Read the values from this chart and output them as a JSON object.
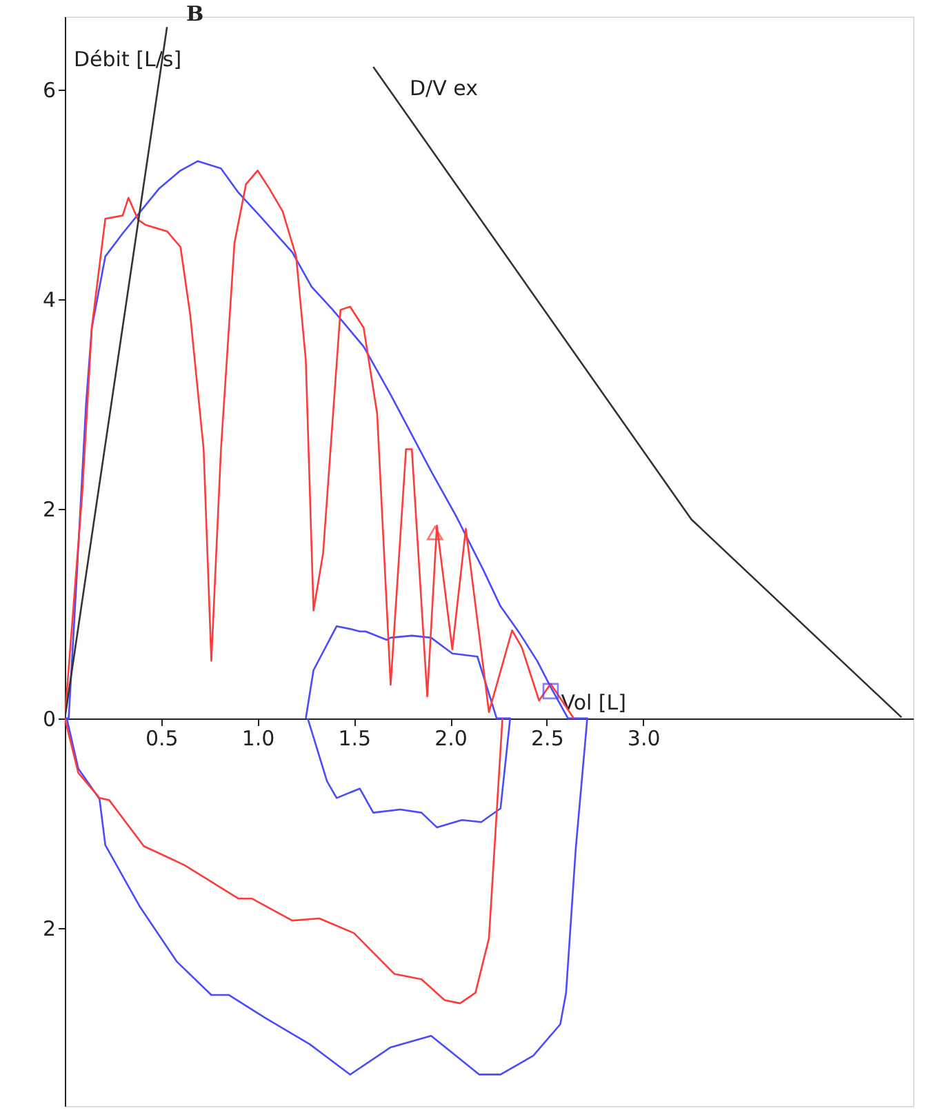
{
  "chart_data": {
    "type": "line",
    "xlabel": "Vol [L]",
    "ylabel": "Débit [L/s]",
    "annotations": [
      "B",
      "D/V ex"
    ],
    "xlim": [
      0,
      4.4
    ],
    "ylim": [
      -3.7,
      6.7
    ],
    "xticks": [
      0.5,
      {
        "value": 1,
        "label": "1.0"
      },
      1.5,
      {
        "value": 2,
        "label": "2.0"
      },
      2.5,
      {
        "value": 3,
        "label": "3.0"
      }
    ],
    "yticks": [
      {
        "value": -2,
        "label": "2"
      },
      0,
      2,
      4,
      6
    ],
    "grid": false,
    "marker": "none",
    "line_style": "solid",
    "series": [
      {
        "color": "#4a4aff",
        "x": [
          0,
          0.02,
          0.06,
          0.11,
          0.14,
          0.21,
          0.3,
          0.49,
          0.6,
          0.69,
          0.81,
          0.9,
          1.01,
          1.18,
          1.28,
          1.39,
          1.55,
          1.69,
          1.9,
          2.03,
          2.17,
          2.26,
          2.36,
          2.45,
          2.52,
          2.61,
          2.71,
          2.65,
          2.6,
          2.57,
          2.43,
          2.26,
          2.15,
          1.9,
          1.69,
          1.48,
          1.27,
          1.04,
          0.85,
          0.76,
          0.58,
          0.39,
          0.21,
          0.18,
          0.07,
          0.01
        ],
        "values": [
          0,
          0,
          1.29,
          3.0,
          3.73,
          4.41,
          4.63,
          5.06,
          5.23,
          5.32,
          5.25,
          5.02,
          4.8,
          4.45,
          4.12,
          3.9,
          3.55,
          3.09,
          2.36,
          1.93,
          1.42,
          1.07,
          0.81,
          0.55,
          0.3,
          0,
          0,
          -1.25,
          -2.62,
          -2.92,
          -3.22,
          -3.4,
          -3.4,
          -3.03,
          -3.14,
          -3.4,
          -3.11,
          -2.86,
          -2.64,
          -2.64,
          -2.32,
          -1.8,
          -1.21,
          -0.77,
          -0.48,
          0
        ]
      },
      {
        "color": "#4a4aff",
        "x": [
          1.25,
          1.29,
          1.41,
          1.49,
          1.53,
          1.56,
          1.67,
          1.69,
          1.8,
          1.9,
          2.01,
          2.14,
          2.24,
          2.31,
          2.26,
          2.16,
          2.06,
          1.93,
          1.85,
          1.74,
          1.6,
          1.53,
          1.41,
          1.36,
          1.26
        ],
        "values": [
          0,
          0.46,
          0.88,
          0.85,
          0.83,
          0.83,
          0.75,
          0.77,
          0.79,
          0.77,
          0.62,
          0.59,
          0,
          0,
          -0.86,
          -0.99,
          -0.97,
          -1.04,
          -0.9,
          -0.87,
          -0.9,
          -0.67,
          -0.76,
          -0.6,
          0
        ]
      },
      {
        "color": "#ff3a3a",
        "x": [
          2.27,
          2.2,
          2.13,
          2.05,
          1.97,
          1.85,
          1.71,
          1.5,
          1.32,
          1.18,
          0.97,
          0.9,
          0.62,
          0.41,
          0.23,
          0.18,
          0.07,
          0,
          0.09,
          0.14,
          0.21,
          0.3,
          0.33,
          0.38,
          0.42,
          0.53,
          0.6,
          0.65,
          0.72,
          0.76,
          0.81,
          0.88,
          0.94,
          1.0,
          1.06,
          1.13,
          1.2,
          1.25,
          1.29,
          1.34,
          1.43,
          1.48,
          1.55,
          1.62,
          1.69,
          1.77,
          1.8,
          1.88,
          1.93,
          2.01,
          2.08,
          2.2,
          2.32,
          2.37,
          2.46,
          2.52,
          2.64
        ],
        "values": [
          0,
          -2.1,
          -2.62,
          -2.72,
          -2.69,
          -2.49,
          -2.44,
          -2.05,
          -1.91,
          -1.93,
          -1.72,
          -1.72,
          -1.4,
          -1.22,
          -0.78,
          -0.76,
          -0.52,
          0,
          2.14,
          3.73,
          4.77,
          4.8,
          4.97,
          4.76,
          4.71,
          4.65,
          4.5,
          3.86,
          2.57,
          0.55,
          2.57,
          4.54,
          5.1,
          5.23,
          5.06,
          4.84,
          4.41,
          3.42,
          1.03,
          1.58,
          3.9,
          3.93,
          3.73,
          2.91,
          0.32,
          2.57,
          2.57,
          0.21,
          1.84,
          0.66,
          1.81,
          0.06,
          0.84,
          0.68,
          0.17,
          0.33,
          0
        ]
      },
      {
        "color": "#333333",
        "x": [
          0,
          0.53
        ],
        "values": [
          0,
          6.6
        ]
      },
      {
        "color": "#333333",
        "x": [
          1.6,
          3.25,
          4.34
        ],
        "values": [
          6.22,
          1.9,
          0.01
        ]
      },
      {
        "type": "scatter",
        "marker": "triangle",
        "color": "#ff3a3a",
        "x": [
          1.92
        ],
        "values": [
          1.75
        ]
      },
      {
        "type": "scatter",
        "marker": "square",
        "color": "#4a4aff",
        "x": [
          2.52
        ],
        "values": [
          0.26
        ]
      }
    ]
  }
}
